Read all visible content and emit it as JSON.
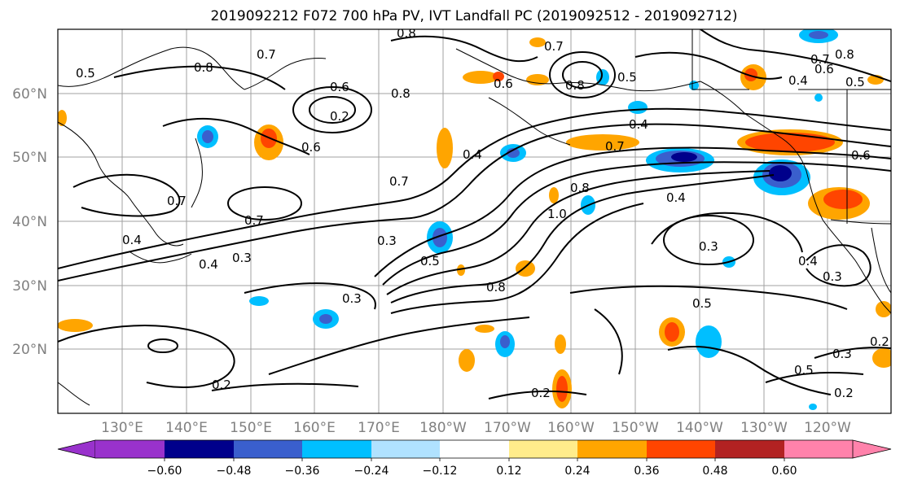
{
  "title": "2019092212 F072 700 hPa PV, IVT Landfall PC (2019092512 - 2019092712)",
  "latitude_labels": [
    "60°N",
    "50°N",
    "40°N",
    "30°N",
    "20°N"
  ],
  "longitude_labels": [
    "130°E",
    "140°E",
    "150°E",
    "160°E",
    "170°E",
    "180°W",
    "170°W",
    "160°W",
    "150°W",
    "140°W",
    "130°W",
    "120°W"
  ],
  "colorbar": {
    "ticks": [
      "−0.60",
      "−0.48",
      "−0.36",
      "−0.24",
      "−0.12",
      "0.12",
      "0.24",
      "0.36",
      "0.48",
      "0.60"
    ],
    "colors": [
      "#9932cc",
      "#00008b",
      "#3a5fcd",
      "#00bfff",
      "#b0e2ff",
      "#ffffff",
      "#ffec8b",
      "#ffa500",
      "#ff4500",
      "#b22222",
      "#ff82ab"
    ]
  },
  "contour_labels": [
    "0.8",
    "0.7",
    "0.5",
    "0.8",
    "0.6",
    "0.2",
    "0.6",
    "0.8",
    "0.7",
    "0.5",
    "0.4",
    "0.8",
    "0.4",
    "0.6",
    "0.7",
    "0.7",
    "0.7",
    "0.3",
    "0.4",
    "0.4",
    "0.3",
    "0.7",
    "0.3",
    "0.5",
    "1.0",
    "0.8",
    "0.8",
    "0.4",
    "0.3",
    "0.3",
    "0.5",
    "0.4",
    "0.5",
    "0.3",
    "0.2",
    "0.2",
    "0.2",
    "0.6",
    "0.2",
    "0.5",
    "0.7",
    "0.6",
    "0.8",
    "0.4"
  ]
}
